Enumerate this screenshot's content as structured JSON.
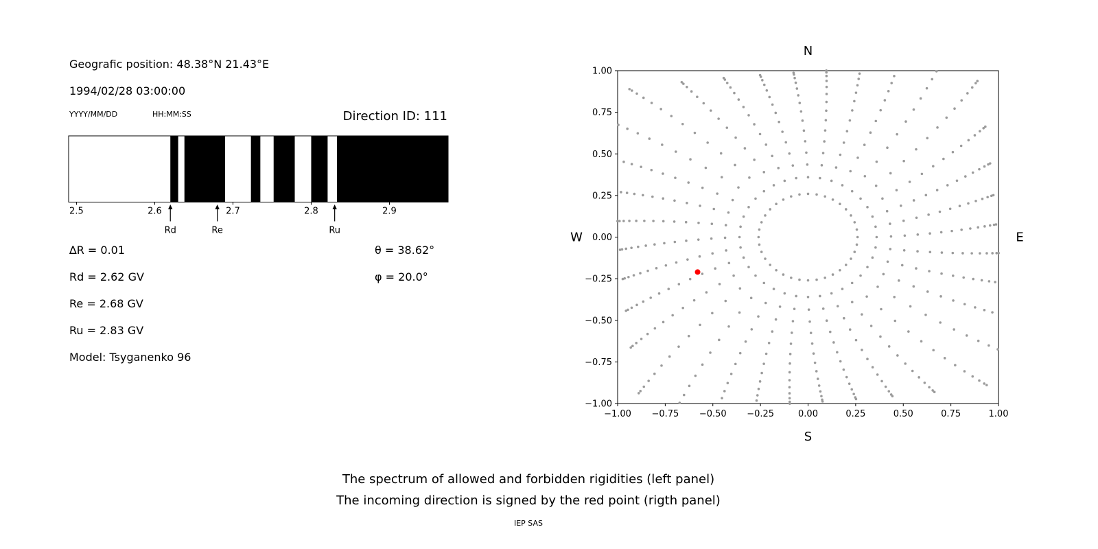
{
  "left_panel": {
    "title": "Geografic position: 48.38°N 21.43°E",
    "datetime": "1994/02/28 03:00:00",
    "date_format_label": "YYYY/MM/DD",
    "time_format_label": "HH:MM:SS",
    "direction_id": "Direction ID: 111",
    "annotations": {
      "delta_r": "∆R = 0.01",
      "rd": "Rd = 2.62 GV",
      "re": "Re = 2.68 GV",
      "ru": "Ru = 2.83 GV",
      "model": "Model: Tsyganenko 96",
      "theta": "θ = 38.62°",
      "phi": "φ = 20.0°"
    }
  },
  "caption": {
    "line1": "The spectrum of allowed and forbidden rigidities (left panel)",
    "line2": "The incoming direction is signed by the red point (rigth panel)",
    "credit": "IEP SAS"
  },
  "chart_data": [
    {
      "type": "bar",
      "title": "",
      "description": "Rigidity spectrum: white = allowed, black = forbidden",
      "xlim": [
        2.49,
        2.975
      ],
      "xticks": [
        2.5,
        2.6,
        2.7,
        2.8,
        2.9
      ],
      "allowed_color": "#ffffff",
      "forbidden_color": "#000000",
      "forbidden_bands": [
        [
          2.62,
          2.63
        ],
        [
          2.638,
          2.69
        ],
        [
          2.723,
          2.735
        ],
        [
          2.752,
          2.779
        ],
        [
          2.8,
          2.821
        ],
        [
          2.833,
          2.975
        ]
      ],
      "markers": [
        {
          "label": "Rd",
          "x": 2.62
        },
        {
          "label": "Re",
          "x": 2.68
        },
        {
          "label": "Ru",
          "x": 2.83
        }
      ]
    },
    {
      "type": "scatter",
      "title": "",
      "description": "Asymptotic direction map; incoming direction marked by red point",
      "xlim": [
        -1,
        1
      ],
      "ylim": [
        -1,
        1
      ],
      "xticks": [
        -1,
        -0.75,
        -0.5,
        -0.25,
        0,
        0.25,
        0.5,
        0.75,
        1
      ],
      "yticks": [
        -1,
        -0.75,
        -0.5,
        -0.25,
        0,
        0.25,
        0.5,
        0.75,
        1
      ],
      "compass": {
        "top": "N",
        "bottom": "S",
        "left": "W",
        "right": "E"
      },
      "red_point": {
        "x": -0.58,
        "y": -0.21,
        "color": "#ff0000",
        "radius_px": 4
      },
      "gray_dots": {
        "color": "#9b9b9b",
        "radius_px": 1.8,
        "inner_ring": {
          "radius": 0.26,
          "count": 36
        },
        "spokes": {
          "count": 36,
          "r_start": 0.36,
          "r_end": 1.42,
          "points": 14,
          "curl_deg_per_unit_r": 7
        }
      }
    }
  ]
}
